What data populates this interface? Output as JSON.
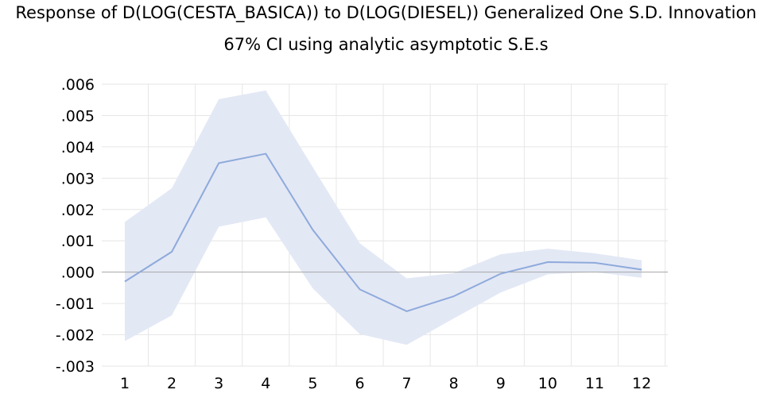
{
  "chart_data": {
    "type": "line",
    "title": "Response of D(LOG(CESTA_BASICA)) to D(LOG(DIESEL)) Generalized One S.D. Innovation",
    "subtitle": "67% CI using analytic asymptotic S.E.s",
    "xlabel": "",
    "ylabel": "",
    "x": [
      1,
      2,
      3,
      4,
      5,
      6,
      7,
      8,
      9,
      10,
      11,
      12
    ],
    "x_tick_labels": [
      "1",
      "2",
      "3",
      "4",
      "5",
      "6",
      "7",
      "8",
      "9",
      "10",
      "11",
      "12"
    ],
    "ylim": [
      -0.003,
      0.006
    ],
    "y_ticks": [
      0.006,
      0.005,
      0.004,
      0.003,
      0.002,
      0.001,
      0.0,
      -0.001,
      -0.002,
      -0.003
    ],
    "y_tick_labels": [
      ".006",
      ".005",
      ".004",
      ".003",
      ".002",
      ".001",
      ".000",
      "-.001",
      "-.002",
      "-.003"
    ],
    "grid": true,
    "series": [
      {
        "name": "Response",
        "values": [
          -0.0003,
          0.00065,
          0.00348,
          0.00378,
          0.00135,
          -0.00055,
          -0.00125,
          -0.00077,
          -5e-05,
          0.00032,
          0.0003,
          8e-05
        ]
      }
    ],
    "band": {
      "name": "67% CI",
      "upper": [
        0.0016,
        0.00268,
        0.00552,
        0.0058,
        0.00335,
        0.00092,
        -0.0002,
        -3e-05,
        0.00057,
        0.00075,
        0.0006,
        0.00038
      ],
      "lower": [
        -0.0022,
        -0.00138,
        0.00145,
        0.00175,
        -0.00052,
        -0.00198,
        -0.00232,
        -0.00148,
        -0.00065,
        -7e-05,
        0.0,
        -0.00018
      ]
    },
    "colors": {
      "line": "#8eaadb",
      "band": "#e3e8f5",
      "grid": "#e6e6e6",
      "zero_line": "#a6a6a6"
    }
  }
}
